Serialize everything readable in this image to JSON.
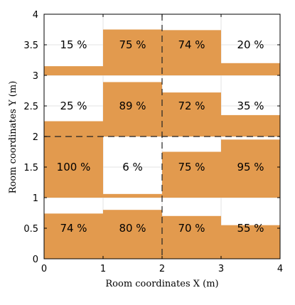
{
  "chart_data": {
    "type": "heatmap",
    "title": "",
    "xlabel": "Room coordinates X (m)",
    "ylabel": "Room coordinates Y (m)",
    "xlim": [
      0,
      4
    ],
    "ylim": [
      0,
      4
    ],
    "xticks": [
      "0",
      "1",
      "2",
      "3",
      "4"
    ],
    "yticks": [
      "0",
      "0.5",
      "1",
      "1.5",
      "2",
      "2.5",
      "3",
      "3.5",
      "4"
    ],
    "grid": true,
    "fill_color": "#E29A4E",
    "cells": [
      {
        "x": [
          0,
          1
        ],
        "y": [
          0,
          1
        ],
        "value": 74,
        "label": "74 %"
      },
      {
        "x": [
          1,
          2
        ],
        "y": [
          0,
          1
        ],
        "value": 80,
        "label": "80 %"
      },
      {
        "x": [
          2,
          3
        ],
        "y": [
          0,
          1
        ],
        "value": 70,
        "label": "70 %"
      },
      {
        "x": [
          3,
          4
        ],
        "y": [
          0,
          1
        ],
        "value": 55,
        "label": "55 %"
      },
      {
        "x": [
          0,
          1
        ],
        "y": [
          1,
          2
        ],
        "value": 100,
        "label": "100 %"
      },
      {
        "x": [
          1,
          2
        ],
        "y": [
          1,
          2
        ],
        "value": 6,
        "label": "6 %"
      },
      {
        "x": [
          2,
          3
        ],
        "y": [
          1,
          2
        ],
        "value": 75,
        "label": "75 %"
      },
      {
        "x": [
          3,
          4
        ],
        "y": [
          1,
          2
        ],
        "value": 95,
        "label": "95 %"
      },
      {
        "x": [
          0,
          1
        ],
        "y": [
          2,
          3
        ],
        "value": 25,
        "label": "25 %"
      },
      {
        "x": [
          1,
          2
        ],
        "y": [
          2,
          3
        ],
        "value": 89,
        "label": "89 %"
      },
      {
        "x": [
          2,
          3
        ],
        "y": [
          2,
          3
        ],
        "value": 72,
        "label": "72 %"
      },
      {
        "x": [
          3,
          4
        ],
        "y": [
          2,
          3
        ],
        "value": 35,
        "label": "35 %"
      },
      {
        "x": [
          0,
          1
        ],
        "y": [
          3,
          4
        ],
        "value": 15,
        "label": "15 %"
      },
      {
        "x": [
          1,
          2
        ],
        "y": [
          3,
          4
        ],
        "value": 75,
        "label": "75 %"
      },
      {
        "x": [
          2,
          3
        ],
        "y": [
          3,
          4
        ],
        "value": 74,
        "label": "74 %"
      },
      {
        "x": [
          3,
          4
        ],
        "y": [
          3,
          4
        ],
        "value": 20,
        "label": "20 %"
      }
    ],
    "divider_lines": [
      {
        "orientation": "vertical",
        "value": 2,
        "style": "dashed"
      },
      {
        "orientation": "horizontal",
        "value": 2,
        "style": "dashed"
      }
    ]
  }
}
